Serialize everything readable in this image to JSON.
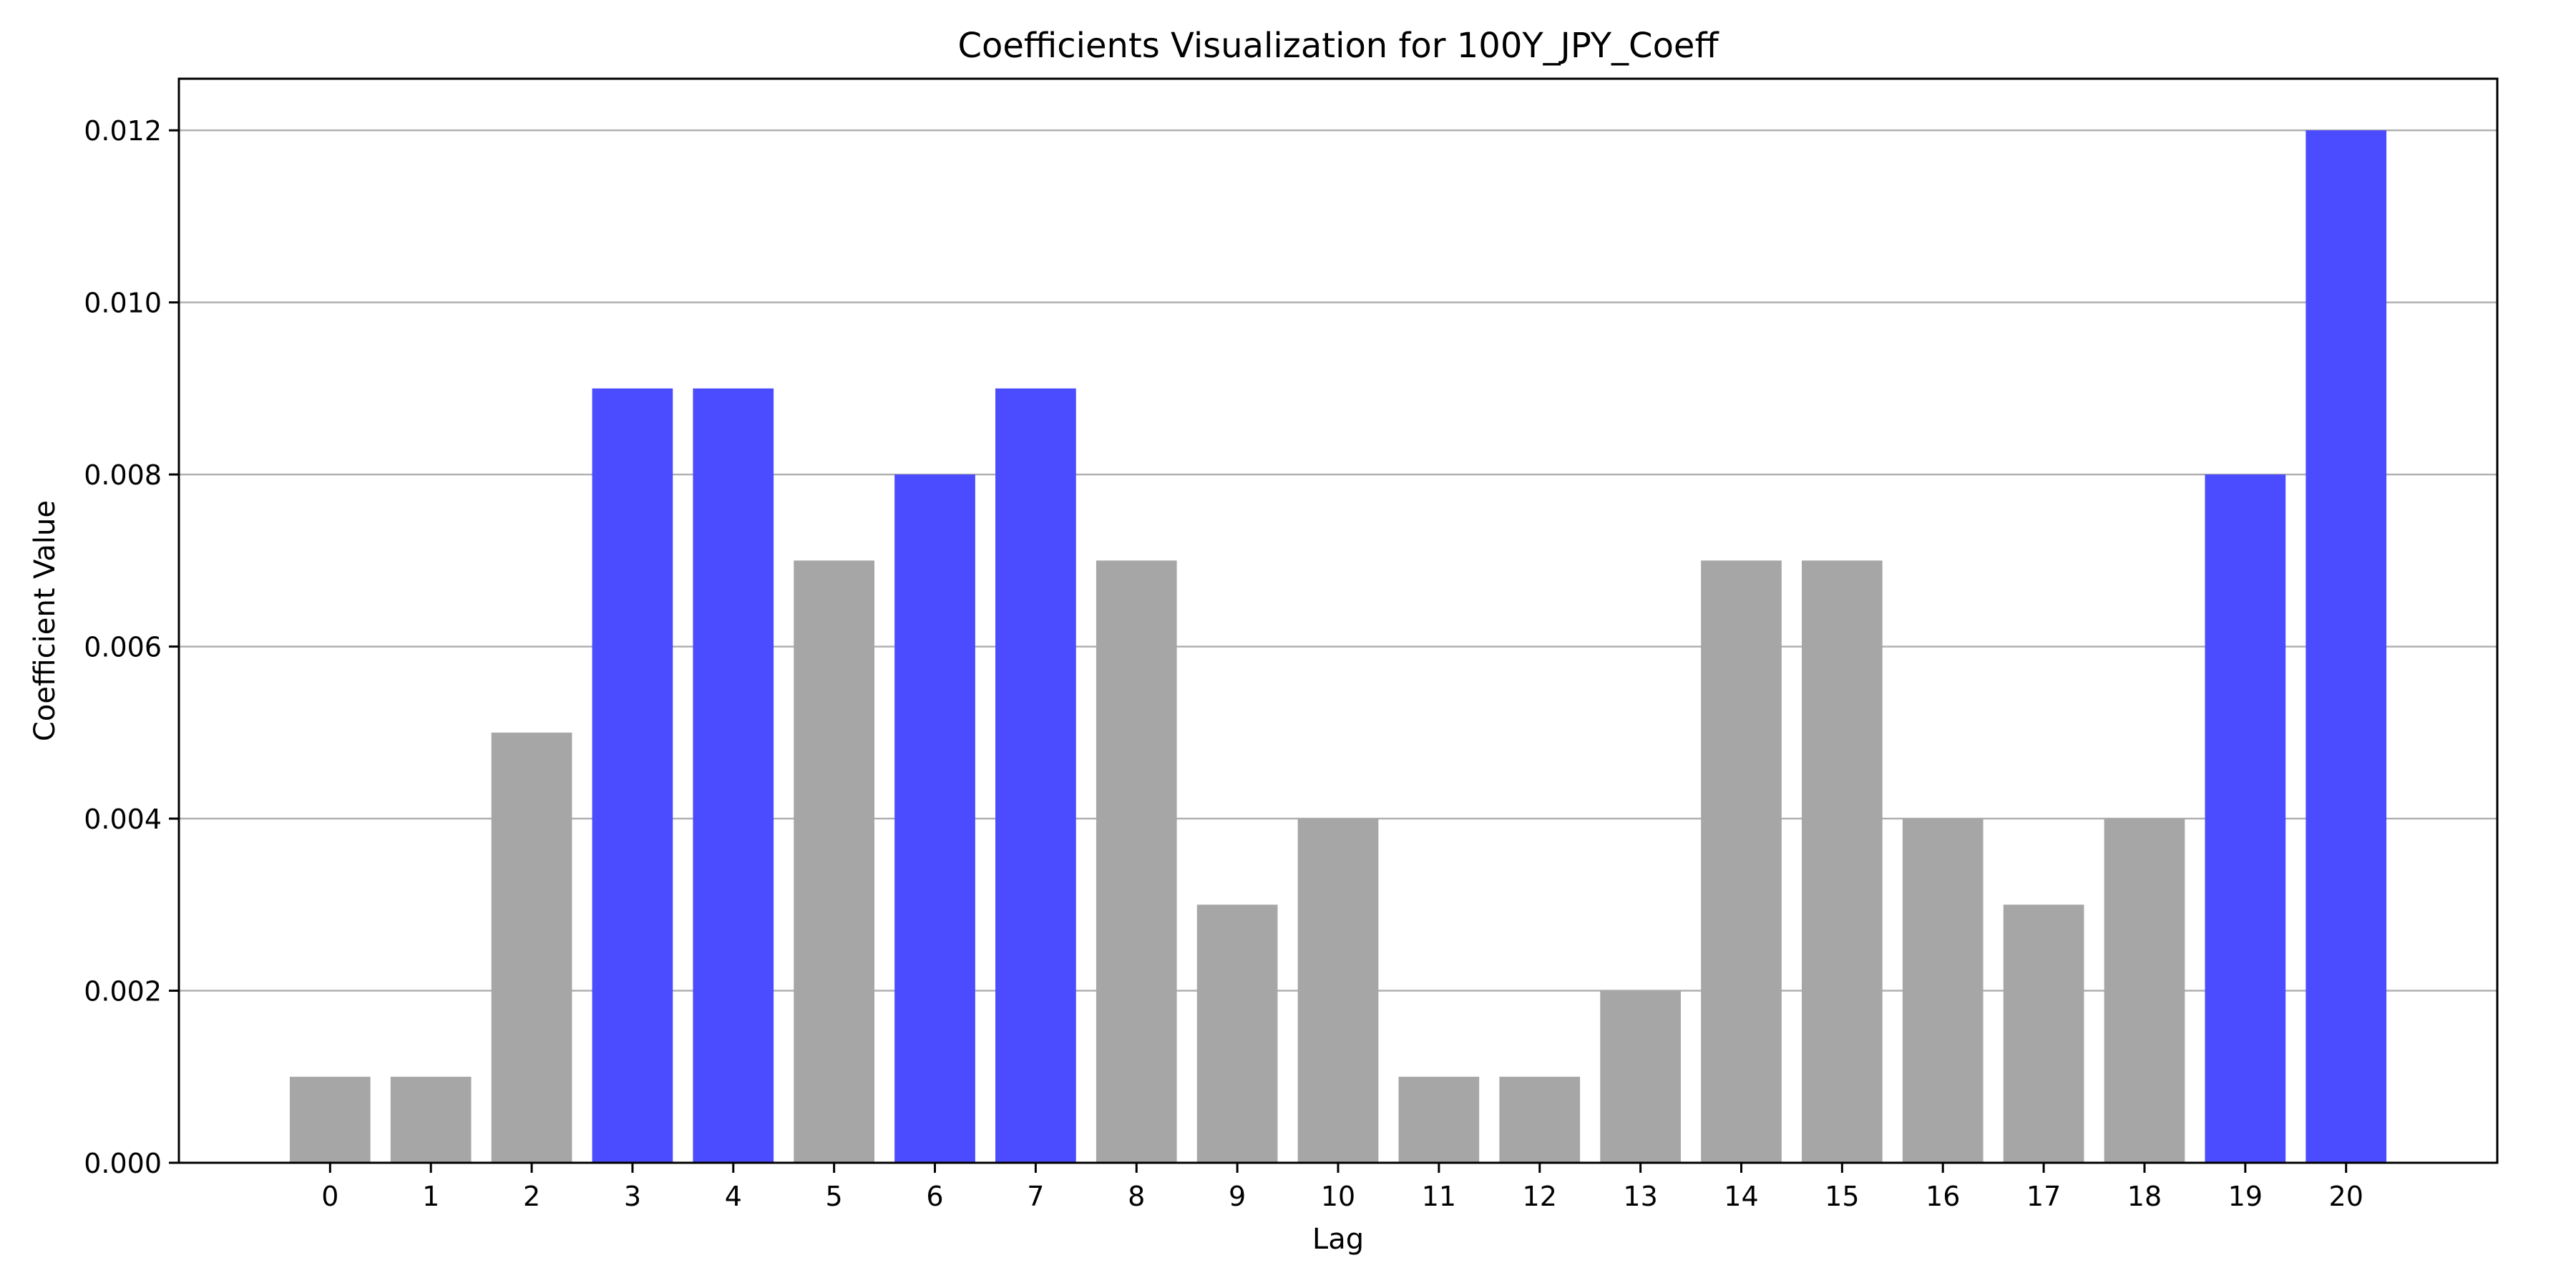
{
  "chart_data": {
    "type": "bar",
    "title": "Coefficients Visualization for 100Y_JPY_Coeff",
    "xlabel": "Lag",
    "ylabel": "Coefficient Value",
    "categories": [
      "0",
      "1",
      "2",
      "3",
      "4",
      "5",
      "6",
      "7",
      "8",
      "9",
      "10",
      "11",
      "12",
      "13",
      "14",
      "15",
      "16",
      "17",
      "18",
      "19",
      "20"
    ],
    "values": [
      0.001,
      0.001,
      0.005,
      0.009,
      0.009,
      0.007,
      0.008,
      0.009,
      0.007,
      0.003,
      0.004,
      0.001,
      0.001,
      0.002,
      0.007,
      0.007,
      0.004,
      0.003,
      0.004,
      0.008,
      0.012
    ],
    "highlighted": [
      false,
      false,
      false,
      true,
      true,
      false,
      true,
      true,
      false,
      false,
      false,
      false,
      false,
      false,
      false,
      false,
      false,
      false,
      false,
      true,
      true
    ],
    "ylim": [
      0,
      0.0126
    ],
    "yticks": [
      "0.000",
      "0.002",
      "0.004",
      "0.006",
      "0.008",
      "0.010",
      "0.012"
    ],
    "grid": "y",
    "colors": {
      "highlight": "#4b4bff",
      "normal": "#a6a6a6",
      "grid": "#b0b0b0"
    }
  }
}
